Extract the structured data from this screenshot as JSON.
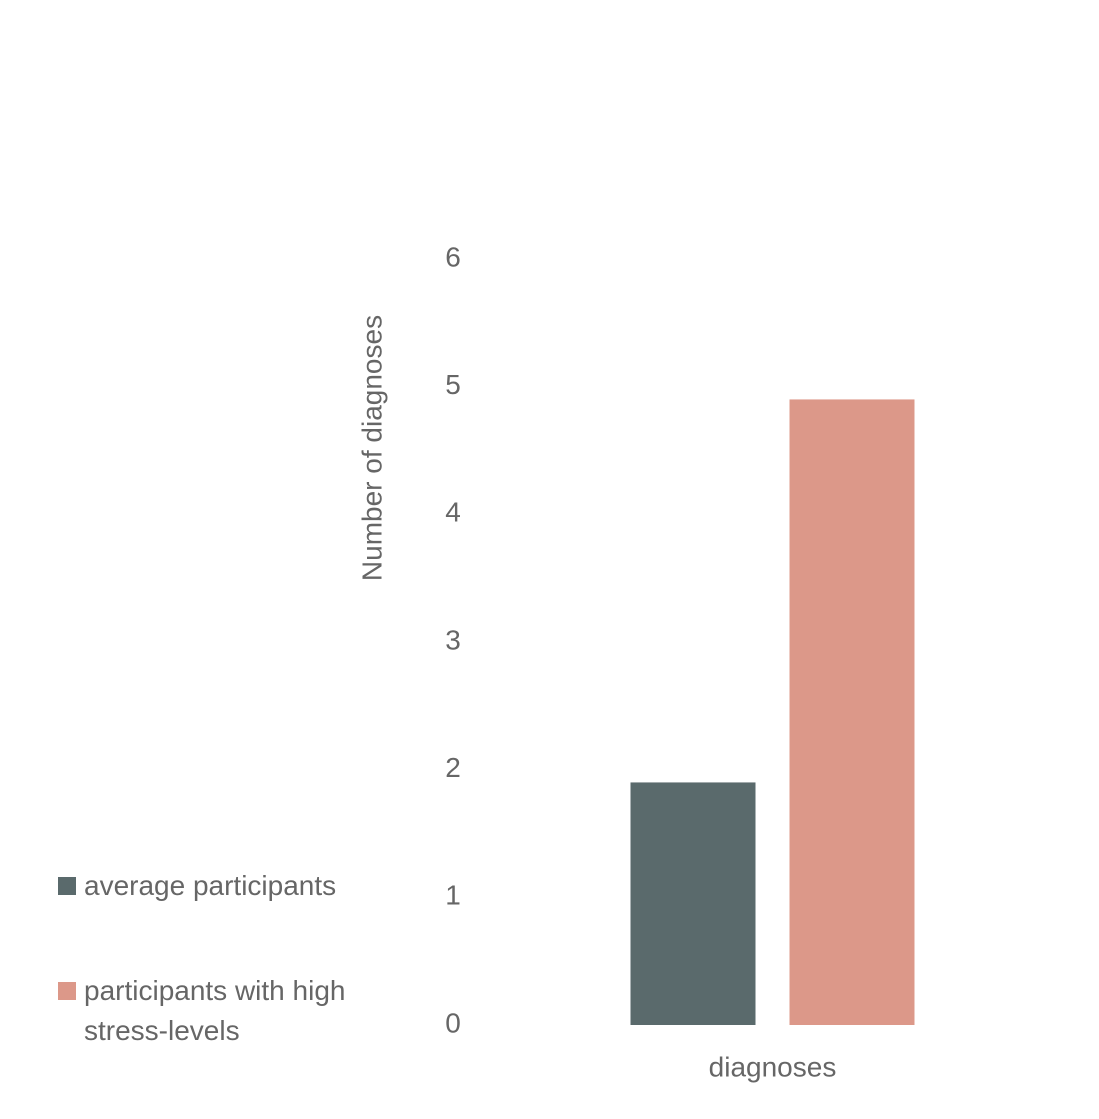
{
  "chart_data": {
    "type": "bar",
    "categories": [
      "diagnoses"
    ],
    "series": [
      {
        "name": "average participants",
        "color": "#5a6a6c",
        "values": [
          1.9
        ]
      },
      {
        "name": "participants with high stress-levels",
        "color": "#dc9889",
        "values": [
          4.9
        ]
      }
    ],
    "y_label": "Number of diagnoses",
    "ylim": [
      0,
      6
    ],
    "yticks": [
      0,
      1,
      2,
      3,
      4,
      5,
      6
    ],
    "grid": false,
    "legend": "bottom-left"
  }
}
